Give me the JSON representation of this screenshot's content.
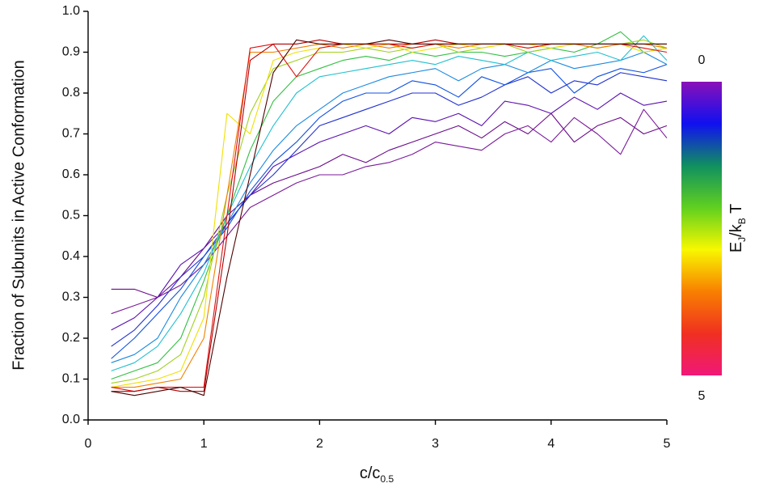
{
  "chart_data": {
    "type": "line",
    "ylabel": "Fraction of Subunits in Active Conformation",
    "xlabel": [
      {
        "text": "c/c"
      },
      {
        "text": "0.5",
        "sub": true
      }
    ],
    "x": [
      0.2,
      0.4,
      0.6,
      0.8,
      1.0,
      1.2,
      1.4,
      1.6,
      1.8,
      2.0,
      2.2,
      2.4,
      2.6,
      2.8,
      3.0,
      3.2,
      3.4,
      3.6,
      3.8,
      4.0,
      4.2,
      4.4,
      4.6,
      4.8,
      5.0
    ],
    "xlim": [
      0,
      5
    ],
    "xticks": [
      0,
      1,
      2,
      3,
      4,
      5
    ],
    "ylim": [
      0,
      1
    ],
    "yticks": [
      {
        "value": 0,
        "label": "0.0"
      },
      0.1,
      0.2,
      0.3,
      0.4,
      0.5,
      0.6,
      0.7,
      0.8,
      0.9,
      {
        "value": 1,
        "label": "1.0"
      }
    ],
    "series": [
      {
        "color": "#6a0a8a",
        "values": [
          0.32,
          0.32,
          0.3,
          0.35,
          0.42,
          0.5,
          0.55,
          0.58,
          0.6,
          0.62,
          0.65,
          0.63,
          0.66,
          0.68,
          0.7,
          0.72,
          0.69,
          0.73,
          0.7,
          0.75,
          0.68,
          0.72,
          0.74,
          0.7,
          0.72
        ]
      },
      {
        "color": "#7a1a9a",
        "values": [
          0.26,
          0.28,
          0.3,
          0.33,
          0.38,
          0.45,
          0.52,
          0.55,
          0.58,
          0.6,
          0.6,
          0.62,
          0.63,
          0.65,
          0.68,
          0.67,
          0.66,
          0.7,
          0.72,
          0.68,
          0.74,
          0.7,
          0.65,
          0.76,
          0.69
        ]
      },
      {
        "color": "#5a10b0",
        "values": [
          0.22,
          0.25,
          0.3,
          0.38,
          0.42,
          0.48,
          0.55,
          0.62,
          0.65,
          0.68,
          0.7,
          0.72,
          0.7,
          0.74,
          0.73,
          0.75,
          0.72,
          0.78,
          0.77,
          0.75,
          0.79,
          0.76,
          0.8,
          0.77,
          0.78
        ]
      },
      {
        "color": "#2030d0",
        "values": [
          0.18,
          0.22,
          0.28,
          0.35,
          0.4,
          0.48,
          0.55,
          0.6,
          0.66,
          0.72,
          0.74,
          0.76,
          0.78,
          0.8,
          0.8,
          0.77,
          0.79,
          0.82,
          0.84,
          0.8,
          0.83,
          0.82,
          0.85,
          0.84,
          0.83
        ]
      },
      {
        "color": "#1050e0",
        "values": [
          0.15,
          0.2,
          0.26,
          0.32,
          0.4,
          0.47,
          0.56,
          0.63,
          0.68,
          0.74,
          0.78,
          0.8,
          0.8,
          0.83,
          0.82,
          0.79,
          0.84,
          0.82,
          0.85,
          0.86,
          0.8,
          0.84,
          0.86,
          0.85,
          0.87
        ]
      },
      {
        "color": "#1a8ae0",
        "values": [
          0.14,
          0.16,
          0.2,
          0.3,
          0.38,
          0.48,
          0.58,
          0.66,
          0.72,
          0.76,
          0.8,
          0.82,
          0.84,
          0.85,
          0.86,
          0.83,
          0.86,
          0.87,
          0.85,
          0.88,
          0.86,
          0.87,
          0.88,
          0.9,
          0.87
        ]
      },
      {
        "color": "#20c0d0",
        "values": [
          0.12,
          0.14,
          0.18,
          0.26,
          0.36,
          0.5,
          0.62,
          0.72,
          0.8,
          0.84,
          0.85,
          0.86,
          0.87,
          0.88,
          0.87,
          0.89,
          0.88,
          0.87,
          0.9,
          0.88,
          0.89,
          0.9,
          0.88,
          0.94,
          0.88
        ]
      },
      {
        "color": "#30c040",
        "values": [
          0.1,
          0.12,
          0.14,
          0.2,
          0.34,
          0.5,
          0.66,
          0.78,
          0.84,
          0.86,
          0.88,
          0.89,
          0.88,
          0.9,
          0.89,
          0.9,
          0.9,
          0.89,
          0.9,
          0.91,
          0.9,
          0.92,
          0.95,
          0.9,
          0.91
        ]
      },
      {
        "color": "#a0d020",
        "values": [
          0.09,
          0.1,
          0.12,
          0.16,
          0.3,
          0.55,
          0.75,
          0.86,
          0.88,
          0.9,
          0.9,
          0.91,
          0.9,
          0.91,
          0.92,
          0.9,
          0.91,
          0.92,
          0.9,
          0.91,
          0.92,
          0.91,
          0.92,
          0.93,
          0.91
        ]
      },
      {
        "color": "#f0e000",
        "values": [
          0.08,
          0.09,
          0.1,
          0.12,
          0.25,
          0.75,
          0.7,
          0.88,
          0.9,
          0.91,
          0.92,
          0.91,
          0.92,
          0.9,
          0.91,
          0.92,
          0.91,
          0.92,
          0.92,
          0.91,
          0.92,
          0.91,
          0.92,
          0.9,
          0.91
        ]
      },
      {
        "color": "#f08000",
        "values": [
          0.08,
          0.08,
          0.09,
          0.1,
          0.2,
          0.55,
          0.9,
          0.9,
          0.91,
          0.92,
          0.91,
          0.92,
          0.91,
          0.92,
          0.92,
          0.91,
          0.92,
          0.92,
          0.91,
          0.92,
          0.92,
          0.91,
          0.92,
          0.92,
          0.91
        ]
      },
      {
        "color": "#e01010",
        "values": [
          0.08,
          0.07,
          0.08,
          0.08,
          0.08,
          0.5,
          0.91,
          0.92,
          0.84,
          0.91,
          0.92,
          0.92,
          0.92,
          0.91,
          0.92,
          0.92,
          0.92,
          0.92,
          0.91,
          0.92,
          0.92,
          0.92,
          0.92,
          0.91,
          0.9
        ]
      },
      {
        "color": "#b00000",
        "values": [
          0.07,
          0.07,
          0.08,
          0.07,
          0.07,
          0.45,
          0.88,
          0.92,
          0.92,
          0.93,
          0.92,
          0.92,
          0.92,
          0.92,
          0.93,
          0.92,
          0.92,
          0.92,
          0.92,
          0.92,
          0.92,
          0.92,
          0.92,
          0.92,
          0.92
        ]
      },
      {
        "color": "#500000",
        "values": [
          0.07,
          0.06,
          0.07,
          0.08,
          0.06,
          0.35,
          0.6,
          0.85,
          0.93,
          0.92,
          0.92,
          0.92,
          0.93,
          0.92,
          0.92,
          0.92,
          0.92,
          0.92,
          0.92,
          0.92,
          0.92,
          0.92,
          0.92,
          0.92,
          0.92
        ]
      }
    ],
    "colorbar": {
      "label": [
        {
          "text": "E"
        },
        {
          "text": "J",
          "sub": true
        },
        {
          "text": "/k"
        },
        {
          "text": "B",
          "sub": true
        },
        {
          "text": " T"
        }
      ],
      "ticks": [
        0,
        5
      ],
      "range": [
        0,
        5
      ],
      "colors": [
        "#8a10b8",
        "#1010f0",
        "#109060",
        "#60d020",
        "#f8f800",
        "#f88000",
        "#f03020",
        "#f01878"
      ]
    }
  }
}
